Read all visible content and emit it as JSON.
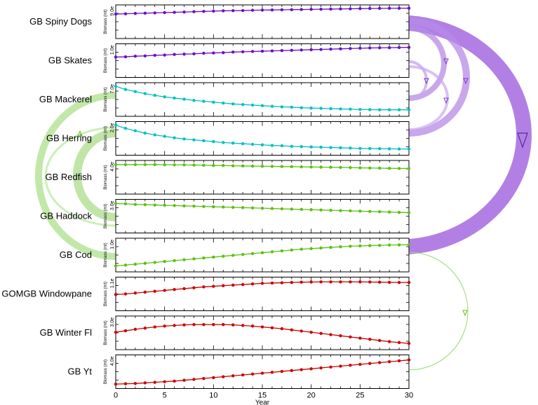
{
  "chart_data": {
    "type": "line",
    "xlabel": "Year",
    "x_ticks": [
      "0",
      "5",
      "10",
      "15",
      "20",
      "25",
      "30"
    ],
    "xlim": [
      0,
      30
    ],
    "panel_ylabel": "Biomass (mt)",
    "panels": [
      {
        "name": "GB  Spiny  Dogs",
        "ymax_label": "9.0e",
        "color": "#6a0dcc",
        "ylim": [
          0,
          1
        ],
        "values": [
          0.76,
          0.77,
          0.78,
          0.79,
          0.8,
          0.81,
          0.82,
          0.83,
          0.84,
          0.85,
          0.86,
          0.87,
          0.875,
          0.88,
          0.89,
          0.895,
          0.9,
          0.905,
          0.91,
          0.915,
          0.92,
          0.925,
          0.93,
          0.935,
          0.94,
          0.945,
          0.95,
          0.953,
          0.956,
          0.958,
          0.96
        ]
      },
      {
        "name": "GB  Skates",
        "ymax_label": "1.0e",
        "color": "#6a0dcc",
        "ylim": [
          0,
          1
        ],
        "values": [
          0.62,
          0.63,
          0.65,
          0.66,
          0.68,
          0.69,
          0.71,
          0.72,
          0.73,
          0.75,
          0.76,
          0.77,
          0.79,
          0.8,
          0.81,
          0.82,
          0.83,
          0.84,
          0.85,
          0.86,
          0.87,
          0.88,
          0.89,
          0.9,
          0.91,
          0.92,
          0.93,
          0.935,
          0.94,
          0.945,
          0.95
        ]
      },
      {
        "name": "GB  Mackerel",
        "ymax_label": "7.0e",
        "color": "#00c0c0",
        "ylim": [
          0,
          1
        ],
        "values": [
          0.95,
          0.84,
          0.77,
          0.7,
          0.64,
          0.59,
          0.55,
          0.51,
          0.47,
          0.44,
          0.41,
          0.38,
          0.35,
          0.33,
          0.31,
          0.29,
          0.27,
          0.25,
          0.24,
          0.22,
          0.21,
          0.2,
          0.19,
          0.18,
          0.17,
          0.16,
          0.155,
          0.15,
          0.15,
          0.15,
          0.15
        ]
      },
      {
        "name": "GB  Herring",
        "ymax_label": "2.0e",
        "color": "#00c0c0",
        "ylim": [
          0,
          1
        ],
        "values": [
          0.95,
          0.84,
          0.76,
          0.68,
          0.62,
          0.57,
          0.52,
          0.48,
          0.45,
          0.42,
          0.39,
          0.36,
          0.34,
          0.32,
          0.3,
          0.28,
          0.26,
          0.25,
          0.23,
          0.22,
          0.21,
          0.2,
          0.19,
          0.18,
          0.17,
          0.16,
          0.155,
          0.15,
          0.145,
          0.14,
          0.14
        ]
      },
      {
        "name": "GB  Redfish",
        "ymax_label": "4.0e",
        "color": "#5cc010",
        "ylim": [
          0,
          1
        ],
        "values": [
          0.93,
          0.93,
          0.93,
          0.93,
          0.93,
          0.925,
          0.92,
          0.92,
          0.915,
          0.91,
          0.9,
          0.9,
          0.89,
          0.885,
          0.88,
          0.875,
          0.87,
          0.865,
          0.86,
          0.855,
          0.85,
          0.845,
          0.84,
          0.835,
          0.83,
          0.82,
          0.815,
          0.81,
          0.805,
          0.8,
          0.8
        ]
      },
      {
        "name": "GB  Haddock",
        "ymax_label": "3.0e",
        "color": "#5cc010",
        "ylim": [
          0,
          1
        ],
        "values": [
          0.93,
          0.92,
          0.9,
          0.89,
          0.88,
          0.87,
          0.86,
          0.85,
          0.84,
          0.83,
          0.82,
          0.81,
          0.8,
          0.79,
          0.78,
          0.77,
          0.76,
          0.75,
          0.74,
          0.73,
          0.72,
          0.71,
          0.7,
          0.69,
          0.68,
          0.67,
          0.66,
          0.65,
          0.64,
          0.63,
          0.62
        ]
      },
      {
        "name": "GB  Cod",
        "ymax_label": "1.0e",
        "color": "#5cc010",
        "ylim": [
          0,
          1
        ],
        "values": [
          0.13,
          0.16,
          0.19,
          0.22,
          0.25,
          0.28,
          0.31,
          0.34,
          0.37,
          0.4,
          0.43,
          0.46,
          0.49,
          0.52,
          0.55,
          0.58,
          0.61,
          0.64,
          0.67,
          0.7,
          0.72,
          0.74,
          0.76,
          0.78,
          0.8,
          0.81,
          0.82,
          0.83,
          0.84,
          0.845,
          0.85
        ]
      },
      {
        "name": "GOMGB  Windowpane",
        "ymax_label": "1.1e",
        "color": "#cc0000",
        "ylim": [
          0,
          1
        ],
        "values": [
          0.48,
          0.5,
          0.53,
          0.56,
          0.59,
          0.62,
          0.65,
          0.68,
          0.71,
          0.74,
          0.76,
          0.78,
          0.8,
          0.82,
          0.84,
          0.86,
          0.87,
          0.88,
          0.89,
          0.9,
          0.905,
          0.91,
          0.91,
          0.91,
          0.91,
          0.91,
          0.905,
          0.9,
          0.895,
          0.89,
          0.89
        ]
      },
      {
        "name": "GB  Winter  Fl",
        "ymax_label": "3.0e",
        "color": "#cc0000",
        "ylim": [
          0,
          1
        ],
        "values": [
          0.52,
          0.57,
          0.62,
          0.66,
          0.7,
          0.73,
          0.75,
          0.77,
          0.78,
          0.78,
          0.78,
          0.78,
          0.77,
          0.75,
          0.73,
          0.7,
          0.67,
          0.64,
          0.6,
          0.56,
          0.52,
          0.48,
          0.44,
          0.4,
          0.36,
          0.32,
          0.28,
          0.24,
          0.2,
          0.17,
          0.14
        ]
      },
      {
        "name": "GB  Yt",
        "ymax_label": "4.0e",
        "color": "#cc0000",
        "ylim": [
          0,
          1
        ],
        "values": [
          0.08,
          0.09,
          0.1,
          0.12,
          0.14,
          0.16,
          0.18,
          0.21,
          0.24,
          0.27,
          0.3,
          0.33,
          0.36,
          0.39,
          0.42,
          0.45,
          0.48,
          0.51,
          0.54,
          0.57,
          0.6,
          0.63,
          0.66,
          0.69,
          0.72,
          0.75,
          0.78,
          0.81,
          0.84,
          0.87,
          0.9
        ]
      }
    ],
    "grid": false,
    "legend": "none"
  }
}
